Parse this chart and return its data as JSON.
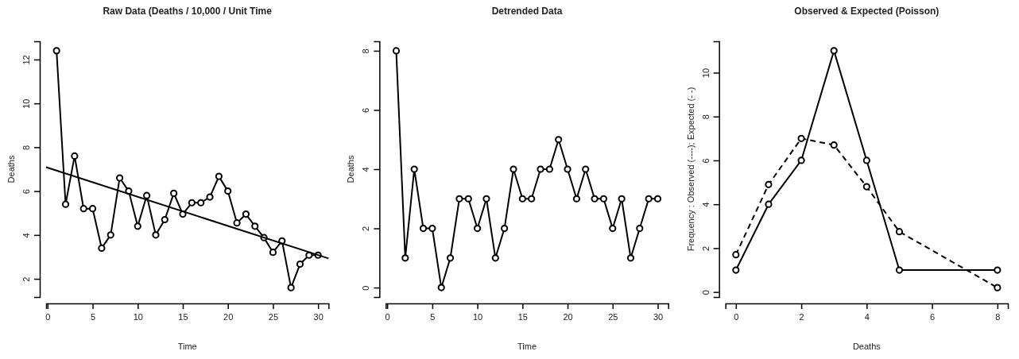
{
  "chart_data": [
    {
      "type": "line",
      "title": "Raw Data (Deaths / 10,000 / Unit Time",
      "xlabel": "Time",
      "ylabel": "Deaths",
      "xlim": [
        -0.16,
        31.16
      ],
      "ylim": [
        1.17,
        12.83
      ],
      "xticks": [
        0,
        5,
        10,
        15,
        20,
        25,
        30
      ],
      "yticks": [
        2,
        4,
        6,
        8,
        10,
        12
      ],
      "marker": "circle",
      "series": [
        {
          "color": "#000000",
          "line_style": "solid",
          "x": [
            1,
            2,
            3,
            4,
            5,
            6,
            7,
            8,
            9,
            10,
            11,
            12,
            13,
            14,
            15,
            16,
            17,
            18,
            19,
            20,
            21,
            22,
            23,
            24,
            25,
            26,
            27,
            28,
            29,
            30
          ],
          "values": [
            12.4,
            5.4,
            7.6,
            5.2,
            5.2,
            3.4,
            4.0,
            6.6,
            6.0,
            4.4,
            5.8,
            4.0,
            4.7,
            5.9,
            4.95,
            5.47,
            5.47,
            5.73,
            6.67,
            6.0,
            4.55,
            4.95,
            4.4,
            3.88,
            3.21,
            3.73,
            1.6,
            2.67,
            3.08,
            3.08
          ]
        },
        {
          "color": "#000000",
          "line_style": "solid",
          "marker": "none",
          "x": [
            -0.16,
            31.16
          ],
          "values": [
            7.09,
            2.93
          ]
        }
      ]
    },
    {
      "type": "line",
      "title": "Detrended Data",
      "xlabel": "Time",
      "ylabel": "Deaths",
      "xlim": [
        -0.16,
        31.16
      ],
      "ylim": [
        -0.32,
        8.32
      ],
      "xticks": [
        0,
        5,
        10,
        15,
        20,
        25,
        30
      ],
      "yticks": [
        0,
        2,
        4,
        6,
        8
      ],
      "marker": "circle",
      "series": [
        {
          "color": "#000000",
          "line_style": "solid",
          "x": [
            1,
            2,
            3,
            4,
            5,
            6,
            7,
            8,
            9,
            10,
            11,
            12,
            13,
            14,
            15,
            16,
            17,
            18,
            19,
            20,
            21,
            22,
            23,
            24,
            25,
            26,
            27,
            28,
            29,
            30
          ],
          "values": [
            8,
            1,
            4,
            2,
            2,
            0,
            1,
            3,
            3,
            2,
            3,
            1,
            2,
            4,
            3,
            3,
            4,
            4,
            5,
            4,
            3,
            4,
            3,
            3,
            2,
            3,
            1,
            2,
            3,
            3
          ]
        }
      ]
    },
    {
      "type": "line",
      "title": "Observed & Expected (Poisson)",
      "xlabel": "Deaths",
      "ylabel": "Frequency : Observed (----); Expected (- -)",
      "xlim": [
        -0.32,
        8.32
      ],
      "ylim": [
        -0.23,
        11.43
      ],
      "xticks": [
        0,
        2,
        4,
        6,
        8
      ],
      "yticks": [
        0,
        2,
        4,
        6,
        8,
        10
      ],
      "marker": "circle",
      "series": [
        {
          "color": "#000000",
          "line_style": "solid",
          "x": [
            0,
            1,
            2,
            3,
            4,
            5,
            8
          ],
          "values": [
            1,
            4,
            6,
            11,
            6,
            1,
            1
          ]
        },
        {
          "color": "#000000",
          "line_style": "dashed",
          "x": [
            0,
            1,
            2,
            3,
            4,
            5,
            8
          ],
          "values": [
            1.7,
            4.9,
            7.0,
            6.7,
            4.8,
            2.75,
            0.2
          ]
        }
      ]
    }
  ]
}
